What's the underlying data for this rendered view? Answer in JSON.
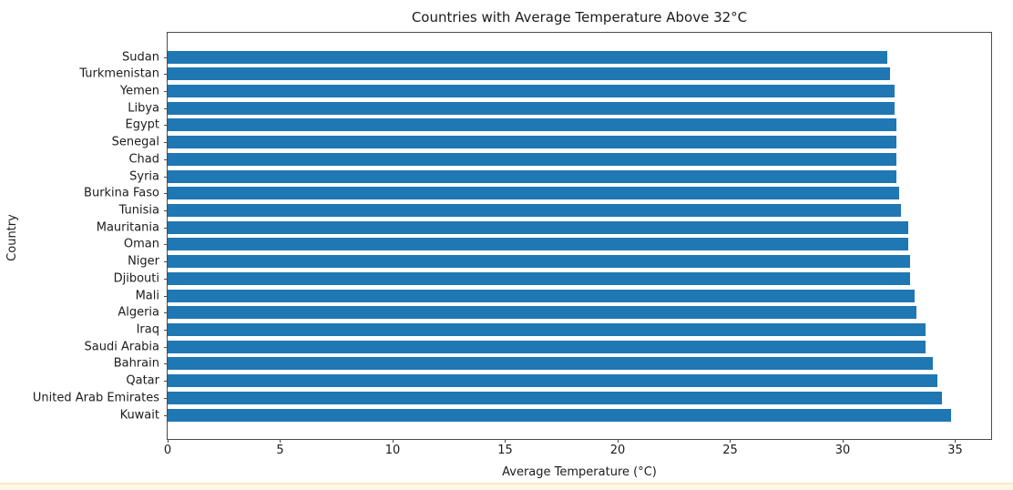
{
  "window": {
    "background": "#ffffff",
    "bottom_strip_color": "#fdf8e6",
    "bottom_strip_border": "#f5ecc3",
    "spine_color": "#4a4a4a",
    "text_color": "#1c1c1c"
  },
  "chart_data": {
    "type": "bar",
    "orientation": "horizontal",
    "title": "Countries with Average Temperature Above 32°C",
    "xlabel": "Average Temperature (°C)",
    "ylabel": "Country",
    "categories": [
      "Sudan",
      "Turkmenistan",
      "Yemen",
      "Libya",
      "Egypt",
      "Senegal",
      "Chad",
      "Syria",
      "Burkina Faso",
      "Tunisia",
      "Mauritania",
      "Oman",
      "Niger",
      "Djibouti",
      "Mali",
      "Algeria",
      "Iraq",
      "Saudi Arabia",
      "Bahrain",
      "Qatar",
      "United Arab Emirates",
      "Kuwait"
    ],
    "values": [
      32.0,
      32.1,
      32.3,
      32.3,
      32.4,
      32.4,
      32.4,
      32.4,
      32.5,
      32.6,
      32.9,
      32.9,
      33.0,
      33.0,
      33.2,
      33.3,
      33.7,
      33.7,
      34.0,
      34.2,
      34.4,
      34.8
    ],
    "xlim": [
      0,
      36.6
    ],
    "xticks": [
      0,
      5,
      10,
      15,
      20,
      25,
      30,
      35
    ],
    "bar_color": "#1f77b4",
    "grid": false,
    "legend_position": "none"
  }
}
